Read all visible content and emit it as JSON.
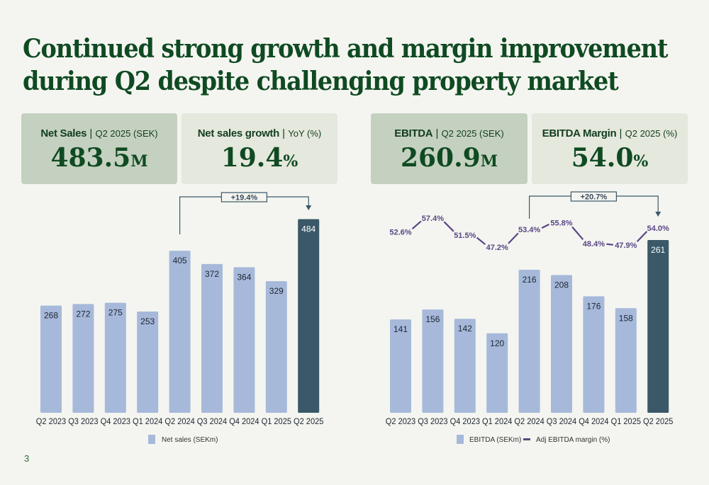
{
  "slide": {
    "title_line1": "Continued strong growth and margin improvement",
    "title_line2": "during Q2 despite challenging property market",
    "page_number": "3"
  },
  "kpis": [
    {
      "label": "Net Sales",
      "sub": "Q2 2025 (SEK)",
      "value": "483.5",
      "unit": "M"
    },
    {
      "label": "Net sales growth",
      "sub": "YoY (%)",
      "value": "19.4",
      "unit": "%"
    },
    {
      "label": "EBITDA",
      "sub": "Q2 2025 (SEK)",
      "value": "260.9",
      "unit": "M"
    },
    {
      "label": "EBITDA Margin",
      "sub": "Q2 2025 (%)",
      "value": "54.0",
      "unit": "%"
    }
  ],
  "colors": {
    "bar": "#a6b9da",
    "bar_highlight": "#3a5868",
    "line": "#5a4685",
    "title": "#0f4a22",
    "annotation": "#3a5868"
  },
  "chart_data": [
    {
      "type": "bar",
      "title": "",
      "categories": [
        "Q2 2023",
        "Q3 2023",
        "Q4 2023",
        "Q1 2024",
        "Q2 2024",
        "Q3 2024",
        "Q4 2024",
        "Q1 2025",
        "Q2 2025"
      ],
      "series": [
        {
          "name": "Net sales (SEKm)",
          "values": [
            268,
            272,
            275,
            253,
            405,
            372,
            364,
            329,
            484
          ]
        }
      ],
      "highlight_index": 8,
      "annotation": {
        "text": "+19.4%",
        "from_index": 4,
        "to_index": 8
      },
      "legend": [
        "Net sales (SEKm)"
      ],
      "legend_position": "bottom",
      "grid": false,
      "xlabel": "",
      "ylabel": "",
      "ylim": [
        0,
        500
      ]
    },
    {
      "type": "bar",
      "title": "",
      "categories": [
        "Q2 2023",
        "Q3 2023",
        "Q4 2023",
        "Q1 2024",
        "Q2 2024",
        "Q3 2024",
        "Q4 2024",
        "Q1 2025",
        "Q2 2025"
      ],
      "series": [
        {
          "name": "EBITDA (SEKm)",
          "type": "bar",
          "values": [
            141,
            156,
            142,
            120,
            216,
            208,
            176,
            158,
            261
          ]
        },
        {
          "name": "Adj EBITDA margin (%)",
          "type": "line",
          "values": [
            52.6,
            57.4,
            51.5,
            47.2,
            53.4,
            55.8,
            48.4,
            47.9,
            54.0
          ],
          "labels": [
            "52.6%",
            "57.4%",
            "51.5%",
            "47.2%",
            "53.4%",
            "55.8%",
            "48.4%",
            "47.9%",
            "54.0%"
          ]
        }
      ],
      "highlight_index": 8,
      "annotation": {
        "text": "+20.7%",
        "from_index": 4,
        "to_index": 8
      },
      "legend": [
        "EBITDA (SEKm)",
        "Adj EBITDA margin (%)"
      ],
      "legend_position": "bottom",
      "grid": false,
      "xlabel": "",
      "ylabel": "",
      "ylim": [
        0,
        280
      ]
    }
  ]
}
